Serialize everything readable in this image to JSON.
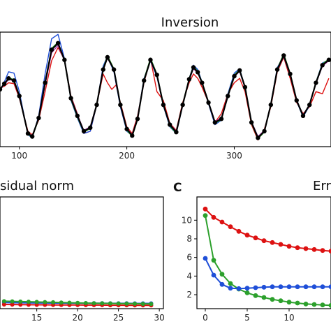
{
  "chart_data": [
    {
      "type": "line",
      "title": "Inversion",
      "xlabel": "",
      "ylabel": "",
      "xlim": [
        82,
        390
      ],
      "ylim": [
        -1.25,
        1.35
      ],
      "x_ticks": [
        100,
        200,
        300
      ],
      "colors": {
        "black": "#000000",
        "green": "#2ca02c",
        "blue": "#1f4fd8",
        "red": "#dd1111",
        "purple": "#9b30a0"
      },
      "series": [
        {
          "color": "black",
          "markers": true,
          "x": [
            82,
            86,
            90,
            95,
            100,
            108,
            112,
            118,
            124,
            130,
            136,
            142,
            148,
            154,
            160,
            166,
            172,
            178,
            182,
            188,
            194,
            200,
            205,
            210,
            216,
            222,
            228,
            234,
            240,
            246,
            252,
            258,
            262,
            266,
            270,
            276,
            282,
            288,
            294,
            300,
            305,
            310,
            316,
            322,
            328,
            334,
            340,
            346,
            352,
            358,
            364,
            370,
            376,
            382,
            388
          ],
          "y": [
            0.05,
            0.18,
            0.3,
            0.25,
            -0.1,
            -0.95,
            -1.02,
            -0.6,
            0.2,
            0.95,
            1.1,
            0.72,
            -0.15,
            -0.55,
            -0.9,
            -0.82,
            -0.3,
            0.5,
            0.78,
            0.5,
            -0.3,
            -0.85,
            -1.0,
            -0.62,
            0.25,
            0.72,
            0.38,
            -0.3,
            -0.75,
            -0.92,
            -0.3,
            0.28,
            0.55,
            0.44,
            0.2,
            -0.25,
            -0.7,
            -0.62,
            -0.1,
            0.35,
            0.48,
            0.1,
            -0.7,
            -1.05,
            -0.9,
            -0.3,
            0.5,
            0.82,
            0.4,
            -0.2,
            -0.55,
            -0.3,
            0.2,
            0.6,
            0.72
          ]
        },
        {
          "color": "green",
          "markers": false,
          "x": [
            82,
            86,
            90,
            95,
            100,
            108,
            112,
            118,
            124,
            130,
            136,
            142,
            148,
            154,
            160,
            166,
            172,
            178,
            182,
            188,
            194,
            200,
            205,
            210,
            216,
            222,
            228,
            234,
            240,
            246,
            252,
            258,
            262,
            266,
            270,
            276,
            282,
            288,
            294,
            300,
            305,
            310,
            316,
            322,
            328,
            334,
            340,
            346,
            352,
            358,
            364,
            370,
            376,
            382,
            388
          ],
          "y": [
            0.05,
            0.17,
            0.32,
            0.27,
            -0.08,
            -0.97,
            -1.04,
            -0.62,
            0.22,
            0.98,
            1.12,
            0.7,
            -0.18,
            -0.58,
            -0.92,
            -0.84,
            -0.28,
            0.52,
            0.82,
            0.52,
            -0.28,
            -0.88,
            -1.02,
            -0.64,
            0.28,
            0.76,
            0.4,
            -0.28,
            -0.78,
            -0.95,
            -0.28,
            0.3,
            0.58,
            0.46,
            0.22,
            -0.24,
            -0.72,
            -0.64,
            -0.08,
            0.38,
            0.5,
            0.1,
            -0.72,
            -1.07,
            -0.92,
            -0.28,
            0.52,
            0.86,
            0.42,
            -0.2,
            -0.57,
            -0.3,
            0.22,
            0.63,
            0.74
          ]
        },
        {
          "color": "blue",
          "markers": false,
          "x": [
            82,
            86,
            90,
            95,
            100,
            108,
            112,
            118,
            124,
            130,
            136,
            142,
            148,
            154,
            160,
            166,
            172,
            178,
            182,
            188,
            194,
            200,
            205,
            210,
            216,
            222,
            228,
            234,
            240,
            246,
            252,
            258,
            262,
            266,
            270,
            276,
            282,
            288,
            294,
            300,
            305,
            310,
            316,
            322,
            328,
            334,
            340,
            346,
            352,
            358,
            364,
            370,
            376,
            382,
            388
          ],
          "y": [
            0.02,
            0.22,
            0.45,
            0.42,
            0.0,
            -0.98,
            -1.05,
            -0.55,
            0.4,
            1.2,
            1.3,
            0.75,
            -0.2,
            -0.6,
            -0.95,
            -0.9,
            -0.3,
            0.58,
            0.8,
            0.45,
            -0.35,
            -0.9,
            -1.0,
            -0.6,
            0.3,
            0.7,
            0.34,
            -0.32,
            -0.8,
            -0.95,
            -0.32,
            0.3,
            0.6,
            0.5,
            0.22,
            -0.28,
            -0.75,
            -0.65,
            -0.05,
            0.42,
            0.52,
            0.1,
            -0.7,
            -1.05,
            -0.92,
            -0.28,
            0.55,
            0.8,
            0.38,
            -0.22,
            -0.58,
            -0.32,
            0.22,
            0.65,
            0.72
          ]
        },
        {
          "color": "purple",
          "markers": false,
          "x": [
            82,
            86,
            90,
            95,
            100,
            108,
            112,
            118,
            124,
            130,
            136,
            142,
            148,
            154,
            160,
            166,
            172,
            178,
            182,
            188,
            194,
            200,
            205,
            210,
            216,
            222,
            228,
            234,
            240,
            246,
            252,
            258,
            262,
            266,
            270,
            276,
            282,
            288,
            294,
            300,
            305,
            310,
            316,
            322,
            328,
            334,
            340,
            346,
            352,
            358,
            364,
            370,
            376,
            382,
            388
          ],
          "y": [
            0.05,
            0.15,
            0.28,
            0.24,
            -0.12,
            -0.95,
            -1.0,
            -0.62,
            0.15,
            0.88,
            1.05,
            0.7,
            -0.12,
            -0.52,
            -0.88,
            -0.8,
            -0.28,
            0.48,
            0.76,
            0.48,
            -0.3,
            -0.84,
            -0.98,
            -0.6,
            0.24,
            0.7,
            0.36,
            -0.3,
            -0.74,
            -0.9,
            -0.3,
            0.26,
            0.52,
            0.42,
            0.2,
            -0.24,
            -0.68,
            -0.6,
            -0.1,
            0.34,
            0.46,
            0.08,
            -0.68,
            -1.02,
            -0.88,
            -0.3,
            0.48,
            0.8,
            0.38,
            -0.2,
            -0.53,
            -0.3,
            0.18,
            0.58,
            0.7
          ]
        },
        {
          "color": "red",
          "markers": false,
          "x": [
            82,
            86,
            90,
            95,
            100,
            108,
            112,
            118,
            124,
            130,
            136,
            142,
            148,
            154,
            160,
            166,
            172,
            178,
            182,
            186,
            190,
            194,
            200,
            205,
            210,
            216,
            222,
            228,
            234,
            240,
            246,
            252,
            258,
            262,
            266,
            270,
            276,
            282,
            288,
            294,
            300,
            305,
            310,
            316,
            322,
            328,
            334,
            340,
            346,
            352,
            358,
            364,
            370,
            376,
            382,
            388
          ],
          "y": [
            0.08,
            0.12,
            0.2,
            0.18,
            -0.15,
            -0.9,
            -0.98,
            -0.65,
            0.0,
            0.7,
            1.0,
            0.72,
            -0.1,
            -0.5,
            -0.95,
            -0.9,
            -0.3,
            0.4,
            0.2,
            0.05,
            0.15,
            -0.25,
            -0.8,
            -0.95,
            -0.55,
            0.2,
            0.75,
            0.0,
            -0.2,
            -0.72,
            -0.88,
            -0.25,
            0.2,
            0.4,
            0.3,
            0.1,
            -0.25,
            -0.7,
            -0.5,
            -0.05,
            0.2,
            0.3,
            0.0,
            -0.75,
            -1.1,
            -0.85,
            -0.35,
            0.45,
            0.78,
            0.3,
            -0.25,
            -0.5,
            -0.35,
            0.0,
            -0.05,
            0.3
          ]
        }
      ]
    },
    {
      "type": "line",
      "title": "sidual norm",
      "xlabel": "",
      "ylabel": "",
      "xlim": [
        10.5,
        30.5
      ],
      "ylim": [
        0,
        12
      ],
      "x_ticks": [
        15,
        20,
        25,
        30
      ],
      "series": [
        {
          "color": "blue",
          "x": [
            11,
            12,
            13,
            14,
            15,
            16,
            17,
            18,
            19,
            20,
            21,
            22,
            23,
            24,
            25,
            26,
            27,
            28,
            29
          ],
          "y": [
            0.65,
            0.64,
            0.63,
            0.62,
            0.61,
            0.61,
            0.6,
            0.6,
            0.59,
            0.59,
            0.58,
            0.58,
            0.58,
            0.57,
            0.57,
            0.57,
            0.56,
            0.56,
            0.56
          ]
        },
        {
          "color": "red",
          "x": [
            11,
            12,
            13,
            14,
            15,
            16,
            17,
            18,
            19,
            20,
            21,
            22,
            23,
            24,
            25,
            26,
            27,
            28,
            29
          ],
          "y": [
            0.45,
            0.44,
            0.43,
            0.42,
            0.41,
            0.41,
            0.4,
            0.4,
            0.39,
            0.39,
            0.38,
            0.38,
            0.38,
            0.37,
            0.37,
            0.37,
            0.36,
            0.36,
            0.36
          ]
        },
        {
          "color": "green",
          "x": [
            11,
            12,
            13,
            14,
            15,
            16,
            17,
            18,
            19,
            20,
            21,
            22,
            23,
            24,
            25,
            26,
            27,
            28,
            29
          ],
          "y": [
            0.8,
            0.78,
            0.76,
            0.74,
            0.72,
            0.7,
            0.68,
            0.66,
            0.64,
            0.62,
            0.6,
            0.58,
            0.57,
            0.56,
            0.55,
            0.54,
            0.53,
            0.52,
            0.51
          ]
        }
      ]
    },
    {
      "type": "line",
      "panel_letter": "C",
      "title": "Err",
      "xlabel": "",
      "ylabel": "",
      "xlim": [
        -1,
        15
      ],
      "ylim": [
        0.5,
        12.5
      ],
      "x_ticks": [
        0,
        5,
        10
      ],
      "y_ticks": [
        2,
        4,
        6,
        8,
        10
      ],
      "series": [
        {
          "color": "red",
          "x": [
            0,
            1,
            2,
            3,
            4,
            5,
            6,
            7,
            8,
            9,
            10,
            11,
            12,
            13,
            14,
            15
          ],
          "y": [
            11.2,
            10.3,
            9.8,
            9.3,
            8.8,
            8.4,
            8.1,
            7.8,
            7.6,
            7.4,
            7.2,
            7.05,
            6.95,
            6.85,
            6.75,
            6.68
          ]
        },
        {
          "color": "green",
          "x": [
            0,
            1,
            2,
            3,
            4,
            5,
            6,
            7,
            8,
            9,
            10,
            11,
            12,
            13,
            14,
            15
          ],
          "y": [
            10.5,
            5.7,
            4.2,
            3.2,
            2.6,
            2.2,
            1.9,
            1.7,
            1.5,
            1.35,
            1.2,
            1.1,
            1.0,
            0.95,
            0.9,
            0.85
          ]
        },
        {
          "color": "blue",
          "x": [
            0,
            1,
            2,
            3,
            4,
            5,
            6,
            7,
            8,
            9,
            10,
            11,
            12,
            13,
            14,
            15
          ],
          "y": [
            5.9,
            4.1,
            3.1,
            2.7,
            2.65,
            2.7,
            2.75,
            2.8,
            2.85,
            2.85,
            2.85,
            2.85,
            2.85,
            2.85,
            2.85,
            2.85
          ]
        }
      ]
    }
  ]
}
